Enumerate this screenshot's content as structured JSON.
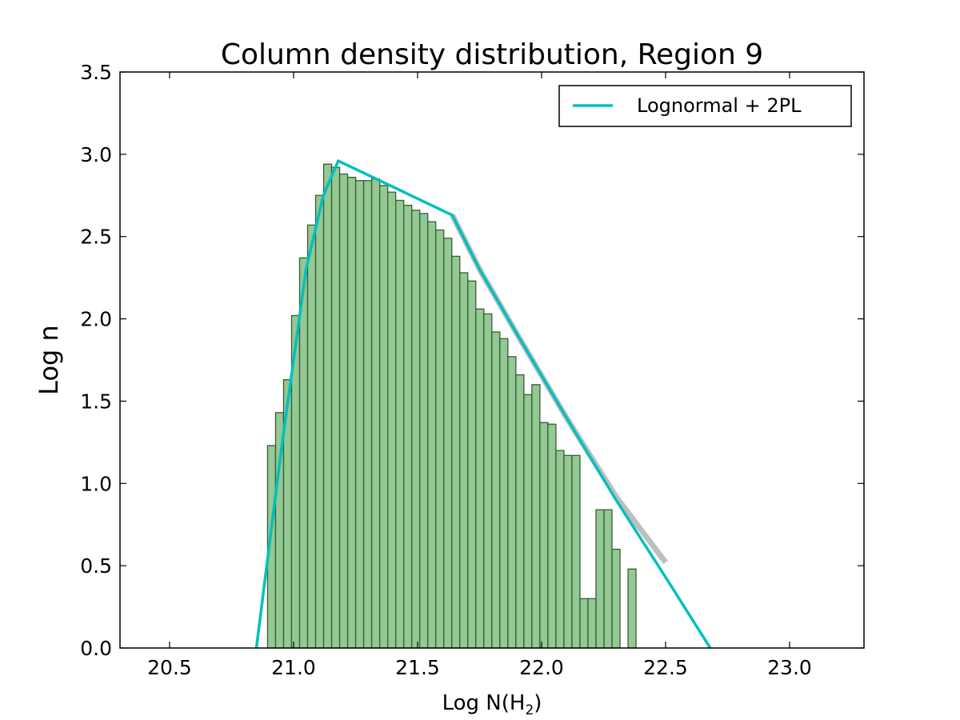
{
  "chart_data": {
    "type": "bar",
    "title": "Column density distribution, Region 9",
    "xlabel_main": "Log N(H",
    "xlabel_sub": "2",
    "xlabel_close": ")",
    "ylabel": "Log n",
    "xlim": [
      20.3,
      23.3
    ],
    "ylim": [
      0.0,
      3.5
    ],
    "xticks": [
      "20.5",
      "21.0",
      "21.5",
      "22.0",
      "22.5",
      "23.0"
    ],
    "yticks": [
      "0.0",
      "0.5",
      "1.0",
      "1.5",
      "2.0",
      "2.5",
      "3.0",
      "3.5"
    ],
    "grid": false,
    "legend": {
      "position": "top-right",
      "entries": [
        "Lognormal + 2PL"
      ]
    },
    "histogram": {
      "bin_start": 20.895,
      "bin_width": 0.0323,
      "values": [
        1.23,
        1.43,
        1.63,
        2.02,
        2.37,
        2.57,
        2.75,
        2.94,
        2.92,
        2.88,
        2.86,
        2.84,
        2.84,
        2.85,
        2.81,
        2.77,
        2.72,
        2.69,
        2.66,
        2.64,
        2.59,
        2.54,
        2.49,
        2.38,
        2.28,
        2.23,
        2.06,
        2.03,
        1.92,
        1.88,
        1.77,
        1.66,
        1.54,
        1.6,
        1.37,
        1.36,
        1.2,
        1.17,
        1.17,
        0.3,
        0.3,
        0.84,
        0.84,
        0.6,
        0.0,
        0.48
      ]
    },
    "series": [
      {
        "name": "Lognormal + 2PL",
        "color": "#00bfbf",
        "x": [
          20.85,
          20.95,
          21.05,
          21.12,
          21.18,
          21.64,
          21.75,
          21.9,
          22.1,
          22.3,
          22.5,
          22.68
        ],
        "y": [
          0.0,
          1.2,
          2.3,
          2.75,
          2.96,
          2.63,
          2.3,
          1.91,
          1.4,
          0.9,
          0.43,
          0.0
        ]
      }
    ],
    "fit_band": {
      "color": "#888888",
      "x": [
        21.64,
        21.75,
        21.9,
        22.1,
        22.3,
        22.5
      ],
      "y": [
        2.63,
        2.3,
        1.91,
        1.4,
        0.92,
        0.52
      ]
    },
    "colors": {
      "bar_fill": "#93c992",
      "bar_edge": "#3a5a3a",
      "fit_line": "#00bfbf"
    }
  }
}
